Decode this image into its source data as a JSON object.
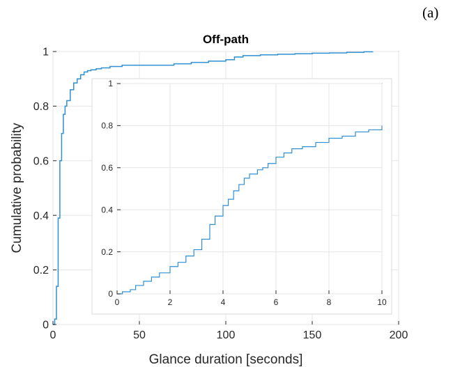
{
  "panel_label": "(a)",
  "chart_data": [
    {
      "type": "line",
      "title": "Off-path",
      "xlabel": "Glance duration [seconds]",
      "ylabel": "Cumulative probability",
      "xlim": [
        0,
        200
      ],
      "ylim": [
        0,
        1
      ],
      "xticks": [
        0,
        50,
        100,
        150,
        200
      ],
      "yticks": [
        0,
        0.2,
        0.4,
        0.6,
        0.8,
        1
      ],
      "xtick_labels": [
        "0",
        "50",
        "100",
        "150",
        "200"
      ],
      "ytick_labels": [
        "0",
        "0.2",
        "0.4",
        "0.6",
        "0.8",
        "1"
      ],
      "grid": true,
      "line_color": "#2f8fd0",
      "series": [
        {
          "x": [
            0,
            1,
            2,
            3,
            4,
            5,
            6,
            7,
            8,
            10,
            12,
            14,
            16,
            18,
            20,
            22,
            25,
            28,
            30,
            33,
            36,
            40,
            45,
            50,
            60,
            70,
            80,
            90,
            100,
            105,
            110,
            120,
            130,
            140,
            150,
            160,
            170,
            180,
            185
          ],
          "y": [
            0,
            0.02,
            0.14,
            0.39,
            0.6,
            0.7,
            0.77,
            0.8,
            0.82,
            0.86,
            0.885,
            0.9,
            0.915,
            0.925,
            0.93,
            0.933,
            0.937,
            0.94,
            0.94,
            0.945,
            0.945,
            0.95,
            0.95,
            0.95,
            0.95,
            0.955,
            0.96,
            0.965,
            0.97,
            0.98,
            0.985,
            0.988,
            0.99,
            0.992,
            0.994,
            0.995,
            0.997,
            0.999,
            1.0
          ]
        }
      ]
    },
    {
      "type": "line",
      "title": "",
      "xlim": [
        0,
        10
      ],
      "ylim": [
        0,
        1
      ],
      "xticks": [
        0,
        2,
        4,
        6,
        8,
        10
      ],
      "yticks": [
        0,
        0.2,
        0.4,
        0.6,
        0.8,
        1
      ],
      "xtick_labels": [
        "0",
        "2",
        "4",
        "6",
        "8",
        "10"
      ],
      "ytick_labels": [
        "0",
        "0.2",
        "0.4",
        "0.6",
        "0.8",
        "1"
      ],
      "grid": true,
      "line_color": "#2f8fd0",
      "series": [
        {
          "x": [
            0,
            0.2,
            0.5,
            0.7,
            1.0,
            1.3,
            1.6,
            2.0,
            2.3,
            2.6,
            2.9,
            3.2,
            3.5,
            3.7,
            4.0,
            4.2,
            4.4,
            4.6,
            4.8,
            5.0,
            5.3,
            5.5,
            5.7,
            6.0,
            6.3,
            6.6,
            7.0,
            7.5,
            8.0,
            8.5,
            9.0,
            9.5,
            10.0
          ],
          "y": [
            0,
            0.01,
            0.02,
            0.04,
            0.06,
            0.08,
            0.1,
            0.13,
            0.15,
            0.18,
            0.21,
            0.26,
            0.33,
            0.37,
            0.42,
            0.45,
            0.49,
            0.52,
            0.55,
            0.57,
            0.59,
            0.6,
            0.62,
            0.65,
            0.67,
            0.69,
            0.7,
            0.72,
            0.74,
            0.75,
            0.77,
            0.78,
            0.8
          ]
        }
      ]
    }
  ]
}
